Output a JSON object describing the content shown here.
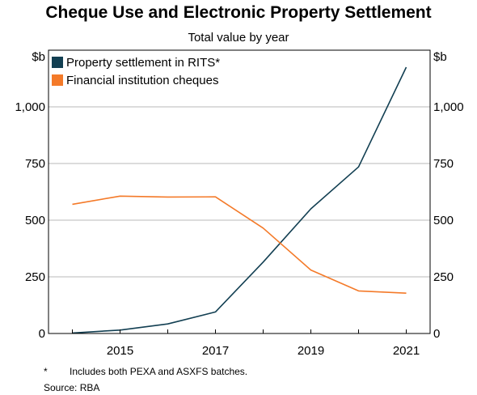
{
  "title": "Cheque Use and Electronic Property Settlement",
  "subtitle": "Total value by year",
  "footnotes": {
    "marker": "*",
    "note": "Includes both PEXA and ASXFS batches.",
    "source": "Source:   RBA"
  },
  "chart_data": {
    "type": "line",
    "title": "Cheque Use and Electronic Property Settlement",
    "subtitle": "Total value by year",
    "x": [
      2014,
      2015,
      2016,
      2017,
      2018,
      2019,
      2020,
      2021
    ],
    "xticks": [
      "2015",
      "2017",
      "2019",
      "2021"
    ],
    "xlim": [
      2013.5,
      2021.5
    ],
    "ylim": [
      0,
      1250
    ],
    "yticks": [
      "0",
      "250",
      "500",
      "750",
      "1,000"
    ],
    "yunit_left": "$b",
    "yunit_right": "$b",
    "grid": true,
    "legend": "top-left",
    "series": [
      {
        "name": "Property settlement in RITS*",
        "color": "#123f52",
        "values": [
          2,
          15,
          42,
          95,
          315,
          550,
          735,
          1175
        ]
      },
      {
        "name": "Financial institution cheques",
        "color": "#f47a29",
        "values": [
          570,
          606,
          602,
          603,
          465,
          280,
          188,
          178
        ]
      }
    ]
  }
}
